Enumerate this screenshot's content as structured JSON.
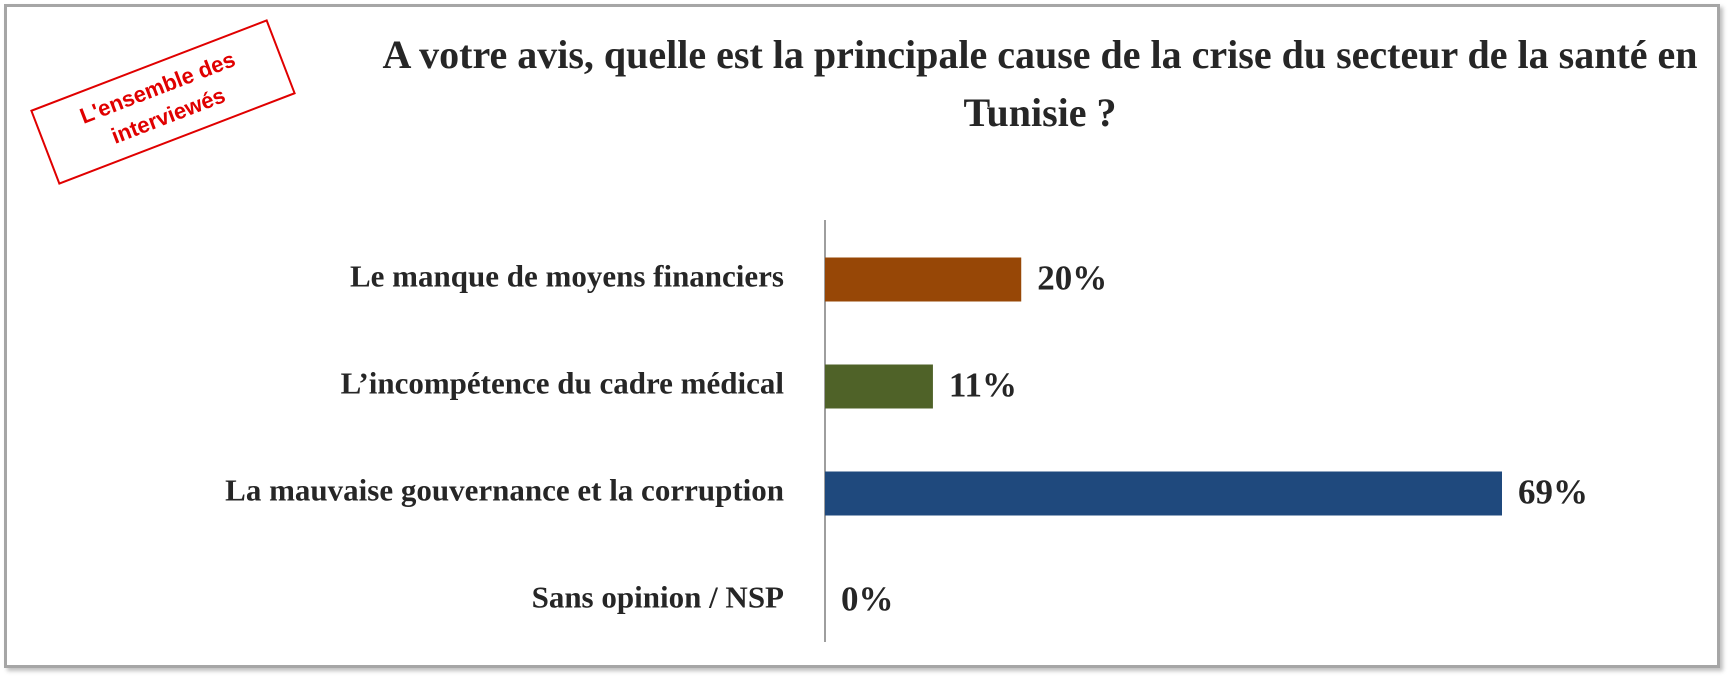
{
  "chart_data": {
    "type": "bar",
    "orientation": "horizontal",
    "title": "A votre avis, quelle est la principale cause de la crise du secteur de la santé en Tunisie ?",
    "annotation": "L'ensemble des interviewés",
    "categories": [
      "Le manque de moyens financiers",
      "L’incompétence du cadre médical",
      "La mauvaise gouvernance et la corruption",
      "Sans opinion / NSP"
    ],
    "values": [
      20,
      11,
      69,
      0
    ],
    "value_labels": [
      "20%",
      "11%",
      "69%",
      "0%"
    ],
    "colors": [
      "#974706",
      "#4f6228",
      "#1f497d",
      null
    ]
  }
}
